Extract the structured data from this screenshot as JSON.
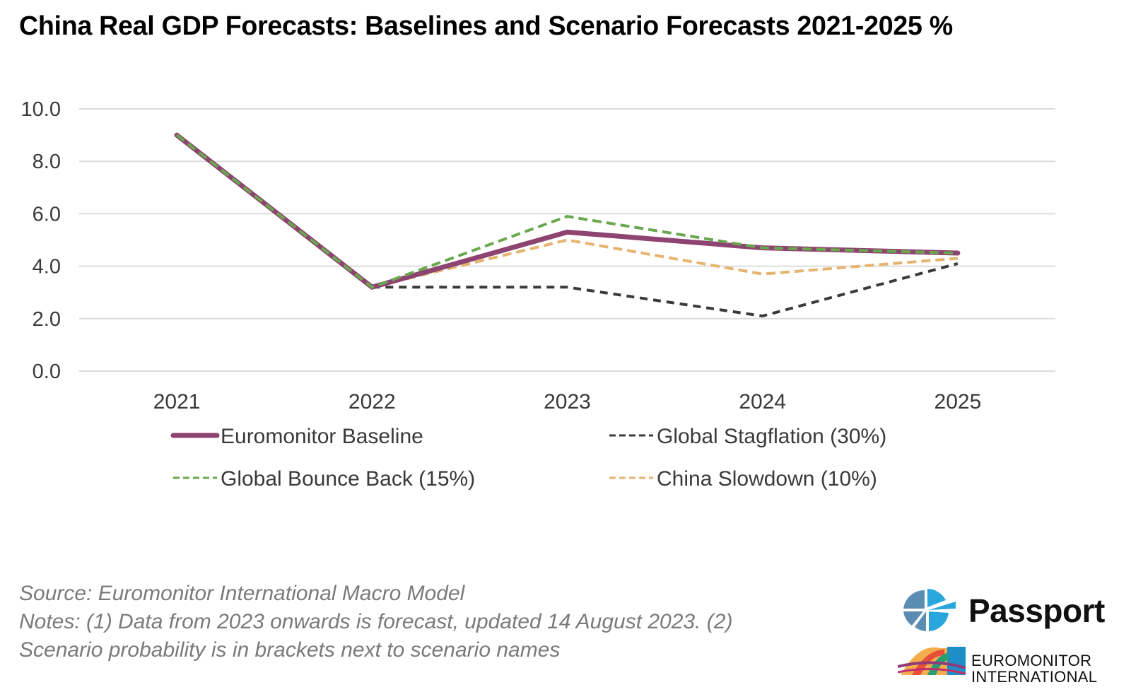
{
  "title": "China Real GDP Forecasts: Baselines and Scenario Forecasts 2021-2025 %",
  "chart_data": {
    "type": "line",
    "title": "China Real GDP Forecasts: Baselines and Scenario Forecasts 2021-2025 %",
    "xlabel": "",
    "ylabel": "",
    "categories": [
      "2021",
      "2022",
      "2023",
      "2024",
      "2025"
    ],
    "yticks": [
      "0.0",
      "2.0",
      "4.0",
      "6.0",
      "8.0",
      "10.0"
    ],
    "ylim": [
      0,
      10
    ],
    "grid": true,
    "legend_position": "bottom",
    "series": [
      {
        "name": "Euromonitor Baseline",
        "values": [
          9.0,
          3.2,
          5.3,
          4.7,
          4.5
        ],
        "color": "#8e4470",
        "style": "solid"
      },
      {
        "name": "Global Stagflation (30%)",
        "values": [
          null,
          3.2,
          3.2,
          2.1,
          4.1
        ],
        "color": "#3a3a3a",
        "style": "dashed"
      },
      {
        "name": "Global Bounce Back (15%)",
        "values": [
          9.0,
          3.2,
          5.9,
          4.7,
          4.5
        ],
        "color": "#6aa84f",
        "style": "dashed"
      },
      {
        "name": "China Slowdown (10%)",
        "values": [
          9.0,
          3.2,
          5.0,
          3.7,
          4.3
        ],
        "color": "#e6b46e",
        "style": "dashed"
      }
    ]
  },
  "footer": {
    "source": "Source: Euromonitor International Macro Model",
    "notes_line1": "Notes: (1) Data from 2023 onwards is forecast, updated 14 August 2023. (2)",
    "notes_line2": "Scenario probability is in brackets next to scenario names"
  },
  "logos": {
    "passport": "Passport",
    "euromonitor_line1": "EUROMONITOR",
    "euromonitor_line2": "INTERNATIONAL"
  }
}
